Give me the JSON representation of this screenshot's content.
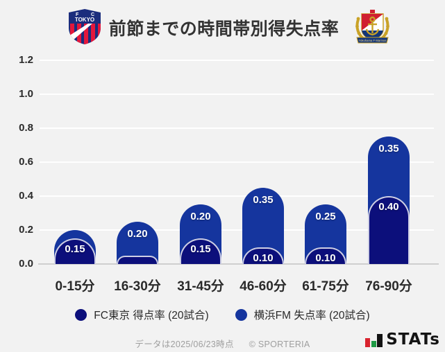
{
  "header": {
    "title": "前節までの時間帯別得失点率",
    "left_team": "FC東京",
    "right_team": "横浜F・マリノス",
    "fc_tokyo_crest": {
      "line1": "F C",
      "line2": "TOKYO"
    },
    "marinos_ribbon": "Yokohama F·Marinos"
  },
  "chart_data": {
    "type": "bar",
    "stacked": true,
    "title": "前節までの時間帯別得失点率",
    "categories": [
      "0-15分",
      "16-30分",
      "31-45分",
      "46-60分",
      "61-75分",
      "76-90分"
    ],
    "series": [
      {
        "name": "FC東京 得点率 (20試合)",
        "role": "bottom-segment",
        "color": "#0c0f7b",
        "values": [
          0.15,
          0.05,
          0.15,
          0.1,
          0.1,
          0.4
        ],
        "data_labels": [
          "0.15",
          "",
          "0.15",
          "0.10",
          "0.10",
          "0.40"
        ]
      },
      {
        "name": "横浜FM 失点率 (20試合)",
        "role": "top-segment",
        "color": "#15359e",
        "values": [
          0.05,
          0.2,
          0.2,
          0.35,
          0.25,
          0.35
        ],
        "data_labels": [
          "",
          "0.20",
          "0.20",
          "0.35",
          "0.25",
          "0.35"
        ]
      }
    ],
    "ylim": [
      0,
      1.2
    ],
    "yticks": [
      "0.0",
      "0.2",
      "0.4",
      "0.6",
      "0.8",
      "1.0",
      "1.2"
    ],
    "grid": true,
    "legend_position": "bottom"
  },
  "legend": {
    "items": [
      {
        "label": "FC東京 得点率 (20試合)",
        "color": "#0c0f7b"
      },
      {
        "label": "横浜FM 失点率 (20試合)",
        "color": "#15359e"
      }
    ]
  },
  "footer": {
    "note": "データは2025/06/23時点",
    "copyright": "© SPORTERIA",
    "brand": "STATs"
  },
  "colors": {
    "background": "#f2f2f2",
    "gridline": "#ffffff",
    "baseline": "#cfcfcf",
    "fc_tokyo_navy": "#0c0f7b",
    "marinos_blue": "#15359e"
  }
}
